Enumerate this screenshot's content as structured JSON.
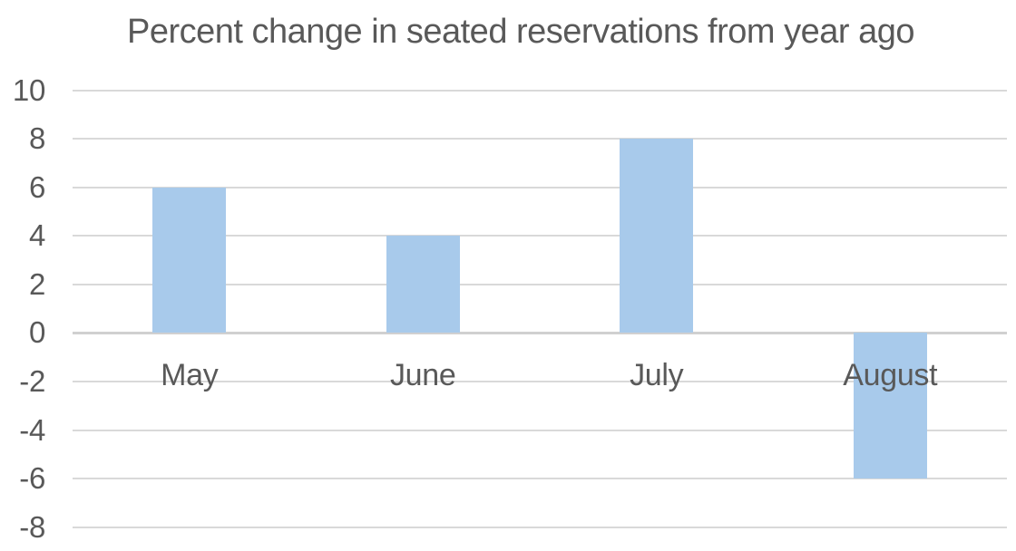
{
  "chart_data": {
    "type": "bar",
    "title": "Percent change in seated reservations from year ago",
    "categories": [
      "May",
      "June",
      "July",
      "August"
    ],
    "values": [
      6,
      4,
      8,
      -6
    ],
    "xlabel": "",
    "ylabel": "",
    "ylim": [
      -8,
      10
    ],
    "yticks": [
      10,
      8,
      6,
      4,
      2,
      0,
      -2,
      -4,
      -6,
      -8
    ],
    "grid": true,
    "legend": false,
    "colors": {
      "bar_fill": "#a8caeb",
      "gridline": "#d9d9d9",
      "zero_axis_line": "#d0d0d0",
      "text": "#595959",
      "background": "#ffffff"
    }
  }
}
